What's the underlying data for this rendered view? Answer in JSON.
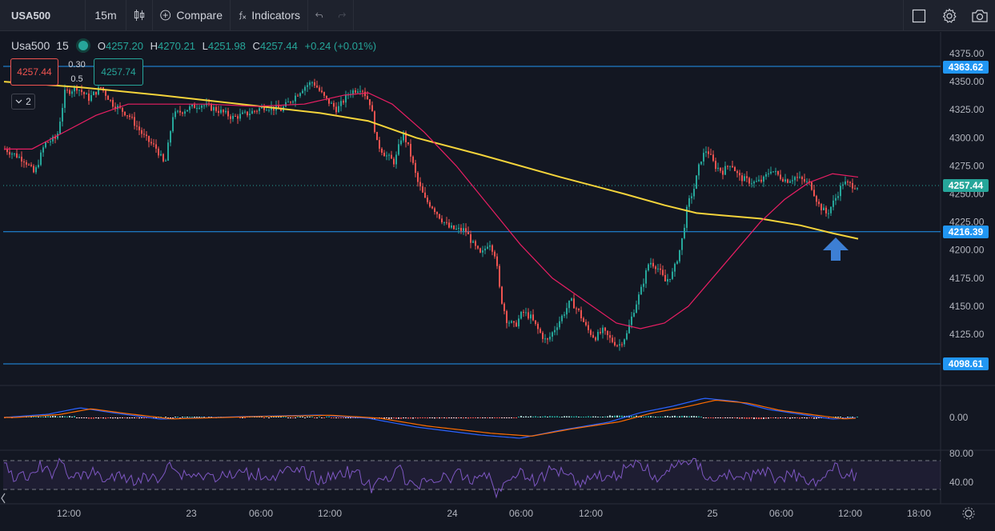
{
  "toolbar": {
    "symbol": "USA500",
    "interval": "15m",
    "compare_label": "Compare",
    "indicators_label": "Indicators"
  },
  "legend": {
    "symbol": "Usa500",
    "timeframe": "15",
    "open_label": "O",
    "open": "4257.20",
    "high_label": "H",
    "high": "4270.21",
    "low_label": "L",
    "low": "4251.98",
    "close_label": "C",
    "close": "4257.44",
    "change": "+0.24 (+0.01%)"
  },
  "trade": {
    "sell_price": "4257.44",
    "spread_top": "0.30",
    "spread_bottom": "0.5",
    "buy_price": "4257.74"
  },
  "collapse": {
    "count": "2"
  },
  "price_axis": {
    "ticks": [
      "4375.00",
      "4350.00",
      "4325.00",
      "4300.00",
      "4275.00",
      "4250.00",
      "4225.00",
      "4200.00",
      "4175.00",
      "4150.00",
      "4125.00"
    ],
    "tags": {
      "top_line": "4363.62",
      "current": "4257.44",
      "mid_line": "4216.39",
      "bottom_line": "4098.61"
    }
  },
  "macd_axis": {
    "zero": "0.00"
  },
  "rsi_axis": {
    "upper": "80.00",
    "lower": "40.00"
  },
  "time_axis": {
    "labels": [
      "12:00",
      "23",
      "06:00",
      "12:00",
      "24",
      "06:00",
      "12:00",
      "25",
      "06:00",
      "12:00",
      "18:00"
    ]
  },
  "colors": {
    "background": "#131722",
    "up": "#26a69a",
    "down": "#ef5350",
    "sma_long": "#f5d43b",
    "sma_short": "#e91e63",
    "hline": "#2196f3",
    "arrow": "#3d7fd4",
    "rsi_line": "#7e57c2"
  },
  "icons": [
    "chart-type-icon",
    "compare-plus-icon",
    "indicators-fx-icon",
    "undo-icon",
    "redo-icon",
    "fullscreen-icon",
    "settings-gear-icon",
    "camera-icon",
    "collapse-chevron-icon",
    "up-arrow-icon",
    "axis-settings-icon"
  ]
}
